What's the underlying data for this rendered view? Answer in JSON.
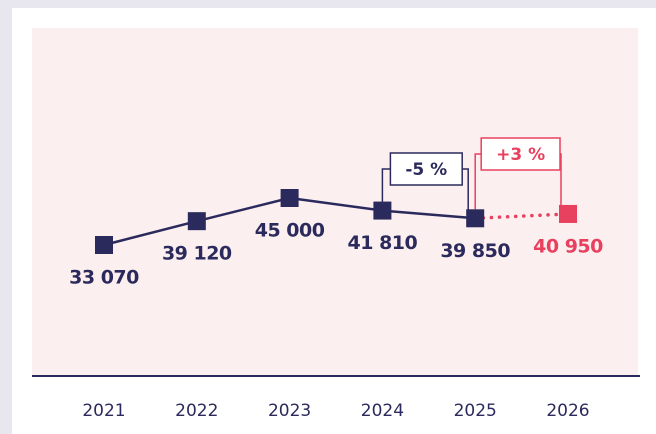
{
  "chart_data": {
    "type": "line",
    "categories": [
      "2021",
      "2022",
      "2023",
      "2024",
      "2025",
      "2026"
    ],
    "values": [
      33070,
      39120,
      45000,
      41810,
      39850,
      40950
    ],
    "value_labels": [
      "33 070",
      "39 120",
      "45 000",
      "41 810",
      "39 850",
      "40 950"
    ],
    "color": "#2b2a5c",
    "forecast_color": "#e8415f",
    "forecast": [
      false,
      false,
      false,
      false,
      false,
      true
    ],
    "annotations": [
      {
        "text": "-5 %",
        "color": "#2b2a5c"
      },
      {
        "text": "+3 %",
        "color": "#e8415f"
      }
    ]
  }
}
